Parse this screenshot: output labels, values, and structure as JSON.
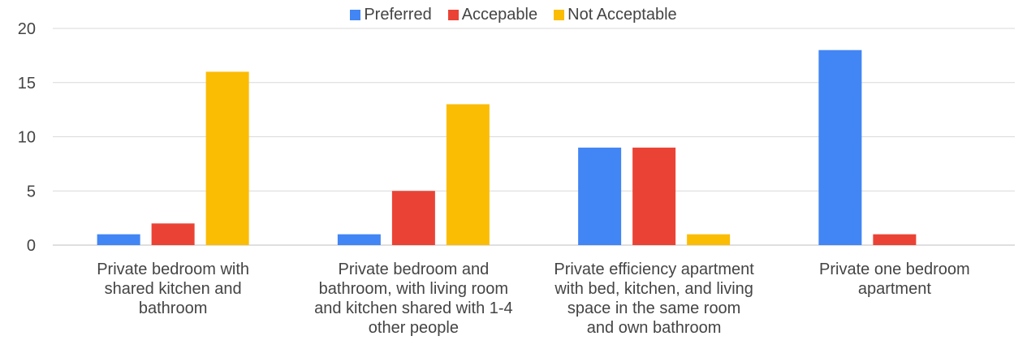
{
  "chart_data": {
    "type": "bar",
    "title": "",
    "xlabel": "",
    "ylabel": "",
    "ylim": [
      0,
      20
    ],
    "yticks": [
      0,
      5,
      10,
      15,
      20
    ],
    "grid": true,
    "legend_position": "top-center",
    "categories": [
      [
        "Private bedroom with",
        "shared kitchen and",
        "bathroom"
      ],
      [
        "Private bedroom and",
        "bathroom, with living room",
        "and kitchen shared with 1-4",
        "other people"
      ],
      [
        "Private efficiency apartment",
        "with bed, kitchen, and living",
        "space in the same room",
        "and own bathroom"
      ],
      [
        "Private one bedroom",
        "apartment"
      ]
    ],
    "series": [
      {
        "name": "Preferred",
        "color": "#4285F4",
        "values": [
          1,
          1,
          9,
          18
        ]
      },
      {
        "name": "Accepable",
        "color": "#EA4335",
        "values": [
          2,
          5,
          9,
          1
        ]
      },
      {
        "name": "Not Acceptable",
        "color": "#FBBC04",
        "values": [
          16,
          13,
          1,
          0
        ]
      }
    ]
  }
}
